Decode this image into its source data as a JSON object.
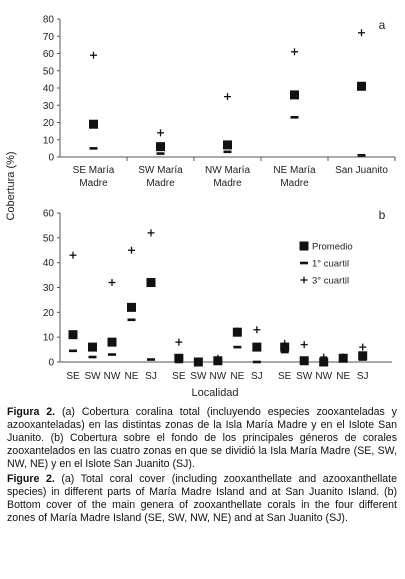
{
  "chart_data": [
    {
      "panel_label": "a",
      "type": "scatter",
      "ylabel": "Cobertura (%)",
      "ylim": [
        0,
        80
      ],
      "yticks": [
        0,
        10,
        20,
        30,
        40,
        50,
        60,
        70,
        80
      ],
      "categories": [
        [
          "SE María",
          "Madre"
        ],
        [
          "SW María",
          "Madre"
        ],
        [
          "NW María",
          "Madre"
        ],
        [
          "NE María",
          "Madre"
        ],
        [
          "San Juanito"
        ]
      ],
      "series": [
        {
          "marker": "square",
          "values": [
            19,
            6,
            7,
            36,
            41
          ]
        },
        {
          "marker": "dash",
          "values": [
            5,
            2,
            3,
            23,
            1
          ]
        },
        {
          "marker": "plus",
          "values": [
            59,
            14,
            35,
            61,
            72
          ]
        }
      ]
    },
    {
      "panel_label": "b",
      "type": "scatter",
      "xlabel": "Localidad",
      "ylim": [
        0,
        60
      ],
      "yticks": [
        0,
        10,
        20,
        30,
        40,
        50,
        60
      ],
      "groups": [
        {
          "categories": [
            "SE",
            "SW",
            "NW",
            "NE",
            "SJ"
          ],
          "promedio": [
            11,
            6,
            8,
            22,
            32
          ],
          "q1": [
            4.5,
            2,
            3,
            17,
            1
          ],
          "q3": [
            43,
            6,
            32,
            45,
            52
          ]
        },
        {
          "categories": [
            "SE",
            "SW",
            "NW",
            "NE",
            "SJ"
          ],
          "promedio": [
            1.5,
            0,
            0.5,
            12,
            6
          ],
          "q1": [
            0,
            0,
            0,
            6,
            0
          ],
          "q3": [
            8,
            0,
            1.5,
            12.5,
            13
          ]
        },
        {
          "categories": [
            "SE",
            "SW",
            "NW",
            "NE",
            "SJ"
          ],
          "promedio": [
            6,
            0.5,
            0,
            1.5,
            2.5
          ],
          "q1": [
            4,
            0,
            0,
            1,
            1
          ],
          "q3": [
            7.5,
            7,
            2,
            2,
            6
          ]
        }
      ],
      "legend": {
        "placement": "top-right",
        "items": [
          {
            "marker": "square",
            "label": "Promedio"
          },
          {
            "marker": "dash",
            "label": "1° cuartil"
          },
          {
            "marker": "plus",
            "label": "3° cuartil"
          }
        ]
      }
    }
  ],
  "caption": {
    "es_label": "Figura 2.",
    "es_text": " (a) Cobertura coralina total (incluyendo especies zooxanteladas y azooxanteladas) en las distintas zonas de la Isla María Madre y en el Islote San Juanito. (b) Cobertura sobre el fondo de los principales géneros de corales zooxantelados en las cuatro zonas en que se dividió la Isla María Madre (SE, SW, NW, NE) y en el Islote San Juanito (SJ).",
    "en_label": "Figure 2.",
    "en_text": " (a) Total coral cover (including zooxanthellate and azooxanthellate species) in different parts of María Madre Island and at San Juanito Island. (b) Bottom cover of the main genera of zooxanthellate corals in the four different zones of María Madre Island (SE, SW, NW, NE) and at San Juanito (SJ)."
  }
}
